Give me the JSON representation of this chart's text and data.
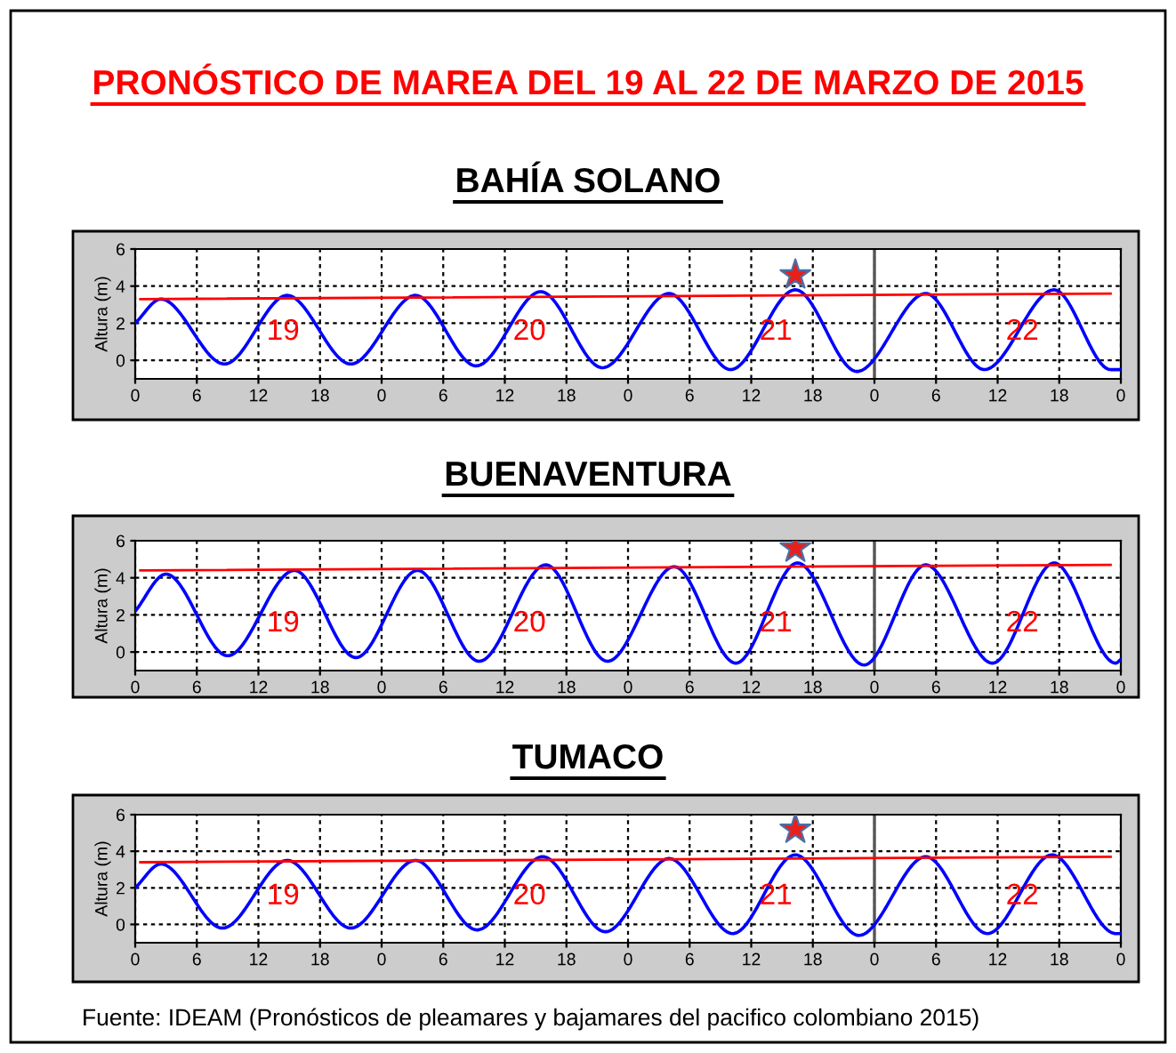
{
  "chart_data": [
    {
      "type": "line",
      "title": "BAHÍA SOLANO",
      "ylabel": "Altura (m)",
      "annotations": [
        "PRONÓSTICO DE MAREA DEL 19 AL 22 DE MARZO DE 2015",
        "19",
        "20",
        "21",
        "22"
      ],
      "series": [
        {
          "type": "line",
          "color": "#0000ff",
          "x": [
            "2015-03-19T00:00",
            "2015-03-19T02:30",
            "2015-03-19T08:42",
            "2015-03-19T14:48",
            "2015-03-19T21:00",
            "2015-03-20T03:18",
            "2015-03-20T09:12",
            "2015-03-20T15:30",
            "2015-03-20T21:30",
            "2015-03-21T04:00",
            "2015-03-21T10:00",
            "2015-03-21T16:18",
            "2015-03-21T22:18",
            "2015-03-22T05:00",
            "2015-03-22T10:42",
            "2015-03-22T17:30",
            "2015-03-22T23:00",
            "2015-03-23T00:00"
          ],
          "values": [
            2.0,
            3.3,
            -0.2,
            3.5,
            -0.2,
            3.5,
            -0.3,
            3.7,
            -0.4,
            3.6,
            -0.5,
            3.8,
            -0.6,
            3.6,
            -0.5,
            3.8,
            -0.5,
            -0.5
          ]
        },
        {
          "type": "line",
          "color": "#ff0000",
          "x": [
            "2015-03-19T00:30",
            "2015-03-22T23:00"
          ],
          "values": [
            3.3,
            3.6
          ]
        },
        {
          "type": "scatter",
          "color": "#e8201c",
          "marker": "star",
          "x": [
            "2015-03-21T16:18"
          ],
          "values": [
            4.6
          ]
        }
      ],
      "ref_lines": [
        {
          "axis": "x",
          "value": "2015-03-22T00:00",
          "color": "#555555"
        }
      ],
      "xlim": [
        "2015-03-19T00:00",
        "2015-03-23T00:00"
      ],
      "ylim": [
        -1,
        6
      ],
      "yticks": [
        0,
        2,
        4,
        6
      ],
      "xticks": [
        {
          "value": "2015-03-19T00:00",
          "label": "0"
        },
        {
          "value": "2015-03-19T06:00",
          "label": "6"
        },
        {
          "value": "2015-03-19T12:00",
          "label": "12"
        },
        {
          "value": "2015-03-19T18:00",
          "label": "18"
        },
        {
          "value": "2015-03-20T00:00",
          "label": "0"
        },
        {
          "value": "2015-03-20T06:00",
          "label": "6"
        },
        {
          "value": "2015-03-20T12:00",
          "label": "12"
        },
        {
          "value": "2015-03-20T18:00",
          "label": "18"
        },
        {
          "value": "2015-03-21T00:00",
          "label": "0"
        },
        {
          "value": "2015-03-21T06:00",
          "label": "6"
        },
        {
          "value": "2015-03-21T12:00",
          "label": "12"
        },
        {
          "value": "2015-03-21T18:00",
          "label": "18"
        },
        {
          "value": "2015-03-22T00:00",
          "label": "0"
        },
        {
          "value": "2015-03-22T06:00",
          "label": "6"
        },
        {
          "value": "2015-03-22T12:00",
          "label": "12"
        },
        {
          "value": "2015-03-22T18:00",
          "label": "18"
        },
        {
          "value": "2015-03-23T00:00",
          "label": "0"
        }
      ],
      "grid": true
    },
    {
      "type": "line",
      "title": "BUENAVENTURA",
      "ylabel": "Altura (m)",
      "annotations": [
        "19",
        "20",
        "21",
        "22"
      ],
      "series": [
        {
          "type": "line",
          "color": "#0000ff",
          "x": [
            "2015-03-19T00:00",
            "2015-03-19T03:00",
            "2015-03-19T09:00",
            "2015-03-19T15:30",
            "2015-03-19T21:30",
            "2015-03-20T03:30",
            "2015-03-20T09:30",
            "2015-03-20T16:00",
            "2015-03-20T22:00",
            "2015-03-21T04:30",
            "2015-03-21T10:30",
            "2015-03-21T16:30",
            "2015-03-21T23:00",
            "2015-03-22T05:00",
            "2015-03-22T11:30",
            "2015-03-22T17:30",
            "2015-03-22T23:30",
            "2015-03-23T00:00"
          ],
          "values": [
            2.2,
            4.2,
            -0.2,
            4.4,
            -0.3,
            4.4,
            -0.5,
            4.7,
            -0.5,
            4.6,
            -0.6,
            4.8,
            -0.7,
            4.7,
            -0.6,
            4.8,
            -0.6,
            -0.4
          ]
        },
        {
          "type": "line",
          "color": "#ff0000",
          "x": [
            "2015-03-19T00:30",
            "2015-03-22T23:00"
          ],
          "values": [
            4.4,
            4.7
          ]
        },
        {
          "type": "scatter",
          "color": "#e8201c",
          "marker": "star",
          "x": [
            "2015-03-21T16:18"
          ],
          "values": [
            5.6
          ]
        }
      ],
      "ref_lines": [
        {
          "axis": "x",
          "value": "2015-03-22T00:00",
          "color": "#555555"
        }
      ],
      "xlim": [
        "2015-03-19T00:00",
        "2015-03-23T00:00"
      ],
      "ylim": [
        -1,
        6
      ],
      "yticks": [
        0,
        2,
        4,
        6
      ],
      "xticks": [
        {
          "value": "2015-03-19T00:00",
          "label": "0"
        },
        {
          "value": "2015-03-19T06:00",
          "label": "6"
        },
        {
          "value": "2015-03-19T12:00",
          "label": "12"
        },
        {
          "value": "2015-03-19T18:00",
          "label": "18"
        },
        {
          "value": "2015-03-20T00:00",
          "label": "0"
        },
        {
          "value": "2015-03-20T06:00",
          "label": "6"
        },
        {
          "value": "2015-03-20T12:00",
          "label": "12"
        },
        {
          "value": "2015-03-20T18:00",
          "label": "18"
        },
        {
          "value": "2015-03-21T00:00",
          "label": "0"
        },
        {
          "value": "2015-03-21T06:00",
          "label": "6"
        },
        {
          "value": "2015-03-21T12:00",
          "label": "12"
        },
        {
          "value": "2015-03-21T18:00",
          "label": "18"
        },
        {
          "value": "2015-03-22T00:00",
          "label": "0"
        },
        {
          "value": "2015-03-22T06:00",
          "label": "6"
        },
        {
          "value": "2015-03-22T12:00",
          "label": "12"
        },
        {
          "value": "2015-03-22T18:00",
          "label": "18"
        },
        {
          "value": "2015-03-23T00:00",
          "label": "0"
        }
      ],
      "grid": true
    },
    {
      "type": "line",
      "title": "TUMACO",
      "ylabel": "Altura (m)",
      "annotations": [
        "19",
        "20",
        "21",
        "22",
        "Fuente: IDEAM (Pronósticos de pleamares y bajamares del pacifico colombiano 2015)"
      ],
      "series": [
        {
          "type": "line",
          "color": "#0000ff",
          "x": [
            "2015-03-19T00:00",
            "2015-03-19T02:30",
            "2015-03-19T08:30",
            "2015-03-19T14:48",
            "2015-03-19T21:00",
            "2015-03-20T03:18",
            "2015-03-20T09:18",
            "2015-03-20T15:42",
            "2015-03-20T21:48",
            "2015-03-21T04:00",
            "2015-03-21T10:12",
            "2015-03-21T16:18",
            "2015-03-21T22:30",
            "2015-03-22T05:00",
            "2015-03-22T11:00",
            "2015-03-22T17:18",
            "2015-03-22T23:30",
            "2015-03-23T00:00"
          ],
          "values": [
            2.0,
            3.3,
            -0.2,
            3.5,
            -0.2,
            3.5,
            -0.3,
            3.7,
            -0.4,
            3.6,
            -0.5,
            3.8,
            -0.6,
            3.7,
            -0.5,
            3.8,
            -0.5,
            -0.5
          ]
        },
        {
          "type": "line",
          "color": "#ff0000",
          "x": [
            "2015-03-19T00:30",
            "2015-03-22T23:00"
          ],
          "values": [
            3.4,
            3.7
          ]
        },
        {
          "type": "scatter",
          "color": "#e8201c",
          "marker": "star",
          "x": [
            "2015-03-21T16:18"
          ],
          "values": [
            5.2
          ]
        }
      ],
      "ref_lines": [
        {
          "axis": "x",
          "value": "2015-03-22T00:00",
          "color": "#555555"
        }
      ],
      "xlim": [
        "2015-03-19T00:00",
        "2015-03-23T00:00"
      ],
      "ylim": [
        -1,
        6
      ],
      "yticks": [
        0,
        2,
        4,
        6
      ],
      "xticks": [
        {
          "value": "2015-03-19T00:00",
          "label": "0"
        },
        {
          "value": "2015-03-19T06:00",
          "label": "6"
        },
        {
          "value": "2015-03-19T12:00",
          "label": "12"
        },
        {
          "value": "2015-03-19T18:00",
          "label": "18"
        },
        {
          "value": "2015-03-20T00:00",
          "label": "0"
        },
        {
          "value": "2015-03-20T06:00",
          "label": "6"
        },
        {
          "value": "2015-03-20T12:00",
          "label": "12"
        },
        {
          "value": "2015-03-20T18:00",
          "label": "18"
        },
        {
          "value": "2015-03-21T00:00",
          "label": "0"
        },
        {
          "value": "2015-03-21T06:00",
          "label": "6"
        },
        {
          "value": "2015-03-21T12:00",
          "label": "12"
        },
        {
          "value": "2015-03-21T18:00",
          "label": "18"
        },
        {
          "value": "2015-03-22T00:00",
          "label": "0"
        },
        {
          "value": "2015-03-22T06:00",
          "label": "6"
        },
        {
          "value": "2015-03-22T12:00",
          "label": "12"
        },
        {
          "value": "2015-03-22T18:00",
          "label": "18"
        },
        {
          "value": "2015-03-23T00:00",
          "label": "0"
        }
      ],
      "grid": true
    }
  ]
}
